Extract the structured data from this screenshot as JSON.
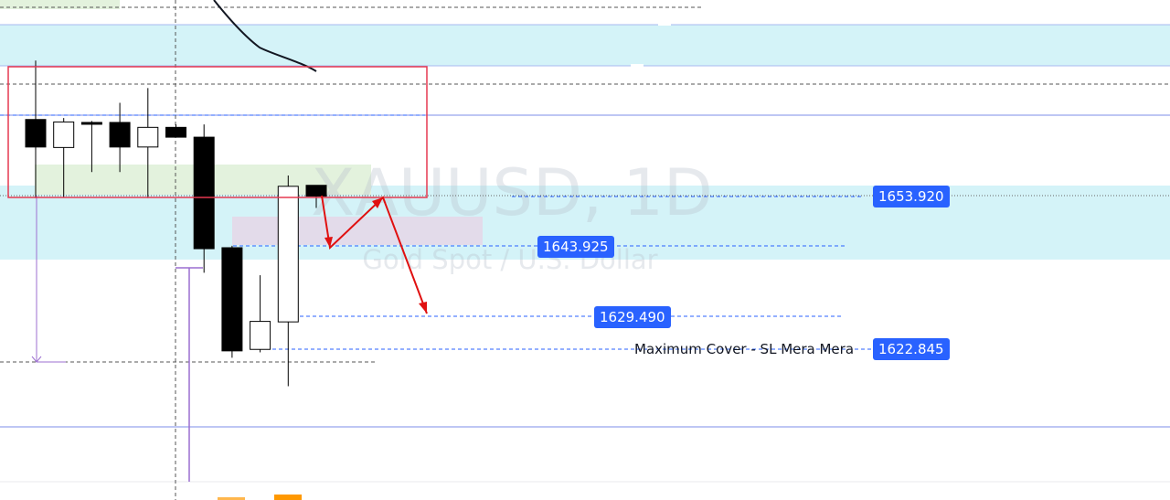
{
  "watermark": {
    "symbol": "XAUUSD, 1D",
    "description": "Gold Spot / U.S. Dollar"
  },
  "colors": {
    "zone_cyan": "#d4f3f8",
    "zone_green": "#e3f2dd",
    "zone_purple": "#e3dbea",
    "box_red": "#e53950",
    "arrow_red": "#e01010",
    "level_blue": "#2962ff",
    "candle_black": "#000000",
    "candle_white": "#ffffff",
    "measure_purple": "#9c6fd0",
    "marker_orange": "#ff9800"
  },
  "price_labels": [
    {
      "price": "1653.920"
    },
    {
      "price": "1643.925"
    },
    {
      "price": "1629.490"
    },
    {
      "price": "1622.845",
      "note": "Maximum Cover - SL Mera Mera"
    }
  ],
  "chart_data": {
    "type": "candlestick",
    "symbol": "XAUUSD",
    "timeframe": "1D",
    "series": [
      {
        "o": 1669.6,
        "h": 1681.6,
        "l": 1653.6,
        "c": 1664.0
      },
      {
        "o": 1663.9,
        "h": 1669.9,
        "l": 1653.7,
        "c": 1669.1
      },
      {
        "o": 1669.0,
        "h": 1669.3,
        "l": 1658.9,
        "c": 1668.9
      },
      {
        "o": 1669.0,
        "h": 1673.0,
        "l": 1658.9,
        "c": 1664.0
      },
      {
        "o": 1664.0,
        "h": 1676.0,
        "l": 1653.6,
        "c": 1668.0
      },
      {
        "o": 1668.0,
        "h": 1668.6,
        "l": 1668.0,
        "c": 1666.0
      },
      {
        "o": 1666.0,
        "h": 1668.6,
        "l": 1638.4,
        "c": 1643.3
      },
      {
        "o": 1643.5,
        "h": 1643.9,
        "l": 1621.1,
        "c": 1622.5
      },
      {
        "o": 1622.8,
        "h": 1637.9,
        "l": 1622.2,
        "c": 1628.5
      },
      {
        "o": 1628.4,
        "h": 1658.2,
        "l": 1615.3,
        "c": 1656.0
      },
      {
        "o": 1656.2,
        "h": 1656.0,
        "l": 1651.6,
        "c": 1654.0
      }
    ],
    "levels": [
      1653.92,
      1643.925,
      1629.49,
      1622.845
    ],
    "annotations": [
      "Maximum Cover - SL Mera Mera"
    ]
  }
}
